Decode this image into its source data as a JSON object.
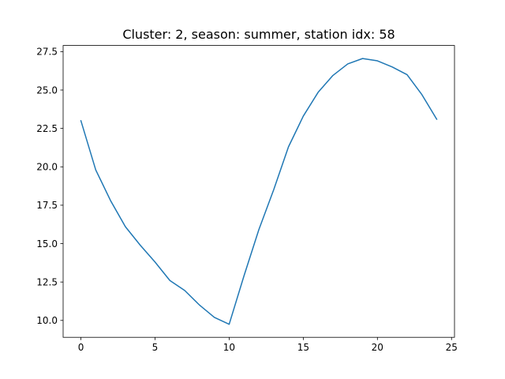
{
  "chart_data": {
    "type": "line",
    "title": "Cluster: 2, season: summer, station idx: 58",
    "xlabel": "",
    "ylabel": "",
    "xlim": [
      -1.2,
      25.2
    ],
    "ylim": [
      8.9,
      27.9
    ],
    "xticks": [
      0,
      5,
      10,
      15,
      20,
      25
    ],
    "xtick_labels": [
      "0",
      "5",
      "10",
      "15",
      "20",
      "25"
    ],
    "yticks": [
      10.0,
      12.5,
      15.0,
      17.5,
      20.0,
      22.5,
      25.0,
      27.5
    ],
    "ytick_labels": [
      "10.0",
      "12.5",
      "15.0",
      "17.5",
      "20.0",
      "22.5",
      "25.0",
      "27.5"
    ],
    "grid": false,
    "series": [
      {
        "color": "#1f77b4",
        "x": [
          0,
          1,
          2,
          3,
          4,
          5,
          6,
          7,
          8,
          9,
          10,
          11,
          12,
          13,
          14,
          15,
          16,
          17,
          18,
          19,
          20,
          21,
          22,
          23,
          24
        ],
        "y": [
          23.0,
          19.8,
          17.8,
          16.1,
          14.9,
          13.8,
          12.6,
          11.95,
          11.0,
          10.2,
          9.75,
          12.9,
          15.9,
          18.5,
          21.3,
          23.3,
          24.85,
          25.95,
          26.7,
          27.05,
          26.9,
          26.5,
          26.0,
          24.7,
          23.1
        ]
      }
    ]
  }
}
